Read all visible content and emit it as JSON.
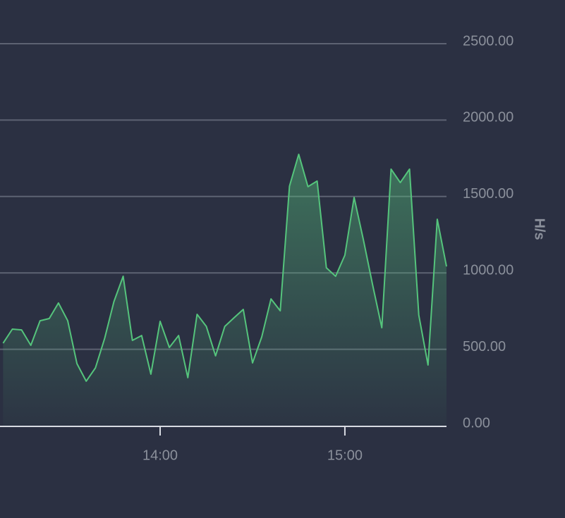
{
  "chart_data": {
    "type": "area",
    "y_label": "H/s",
    "x": [
      "13:09",
      "13:12",
      "13:15",
      "13:18",
      "13:21",
      "13:24",
      "13:27",
      "13:30",
      "13:33",
      "13:36",
      "13:39",
      "13:42",
      "13:45",
      "13:48",
      "13:51",
      "13:54",
      "13:57",
      "14:00",
      "14:03",
      "14:06",
      "14:09",
      "14:12",
      "14:15",
      "14:18",
      "14:21",
      "14:24",
      "14:27",
      "14:30",
      "14:33",
      "14:36",
      "14:39",
      "14:42",
      "14:45",
      "14:48",
      "14:51",
      "14:54",
      "14:57",
      "15:00",
      "15:03",
      "15:06",
      "15:09",
      "15:12",
      "15:15",
      "15:18",
      "15:21",
      "15:24",
      "15:27",
      "15:30",
      "15:33"
    ],
    "series": [
      {
        "color": "#55c47c",
        "values": [
          540,
          632,
          627,
          526,
          687,
          701,
          803,
          687,
          406,
          291,
          378,
          572,
          812,
          978,
          558,
          590,
          337,
          683,
          512,
          590,
          314,
          729,
          650,
          457,
          650,
          706,
          761,
          411,
          581,
          830,
          752,
          1568,
          1776,
          1564,
          1601,
          1033,
          978,
          1116,
          1494,
          1218,
          923,
          641,
          1679,
          1591,
          1679,
          724,
          397,
          1351,
          1042
        ]
      }
    ],
    "xlim": [
      "13:08",
      "15:33"
    ],
    "xticks": [
      "14:00",
      "15:00"
    ],
    "ylim": [
      0,
      2500
    ],
    "yticks": [
      {
        "value": 0,
        "label": "0.00"
      },
      {
        "value": 500,
        "label": "500.00"
      },
      {
        "value": 1000,
        "label": "1000.00"
      },
      {
        "value": 1500,
        "label": "1500.00"
      },
      {
        "value": 2000,
        "label": "2000.00"
      },
      {
        "value": 2500,
        "label": "2500.00"
      }
    ],
    "grid": true
  }
}
